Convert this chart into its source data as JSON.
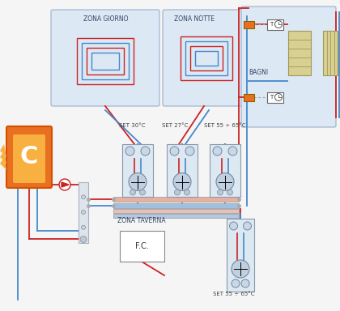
{
  "bg": "#f5f5f5",
  "red": "#cc2222",
  "blue": "#4488cc",
  "orange_dark": "#d45000",
  "orange_mid": "#e87020",
  "orange_light": "#f8b040",
  "gray_box": "#e0e4e8",
  "zone_fill": "#dce8f4",
  "zone_edge": "#9ab0cc",
  "radiator_fill": "#d8d090",
  "radiator_edge": "#a09858",
  "manifold_fill": "#dce8f2",
  "manifold_edge": "#8899aa",
  "white": "#ffffff",
  "dark": "#333333",
  "mid_gray": "#888888",
  "light_gray": "#cccccc",
  "zone_giorno_label": "ZONA GIORNO",
  "zone_notte_label": "ZONA NOTTE",
  "zone_taverna_label": "ZONA TAVERNA",
  "bagni_label": "BAGNI",
  "fc_label": "F.C.",
  "set30": "SET 30°C",
  "set27": "SET 27°C",
  "set55_top": "SET 55 ÷ 65°C",
  "set55_bot": "SET 55 ÷ 65°C"
}
